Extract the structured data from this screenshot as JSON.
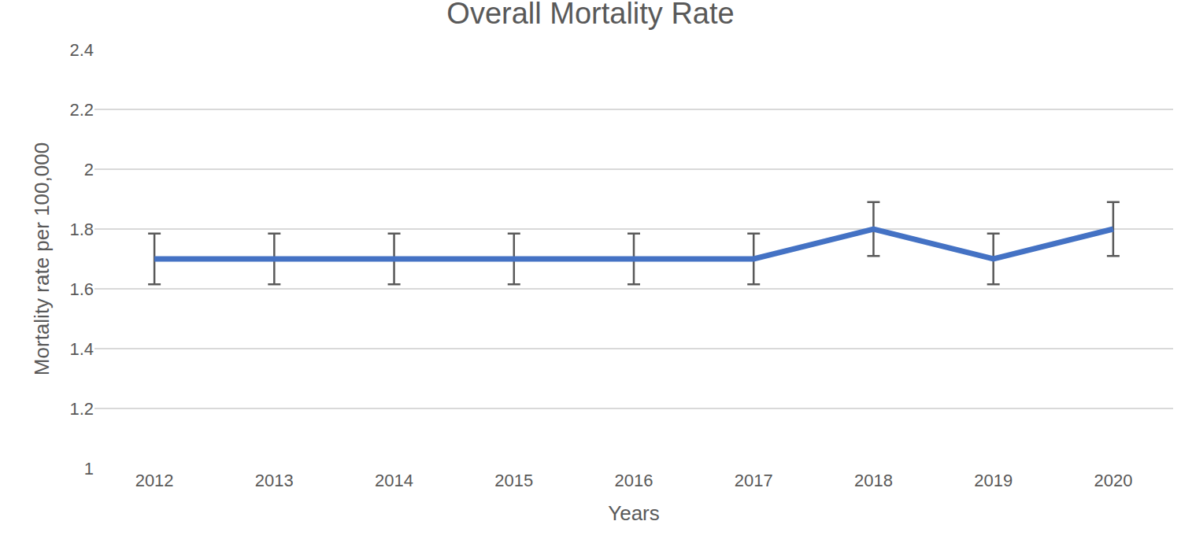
{
  "chart_data": {
    "type": "line",
    "title": "Overall Mortality Rate",
    "x_label": "Years",
    "y_label": "Mortality rate per 100,000",
    "categories": [
      "2012",
      "2013",
      "2014",
      "2015",
      "2016",
      "2017",
      "2018",
      "2019",
      "2020"
    ],
    "values": [
      1.7,
      1.7,
      1.7,
      1.7,
      1.7,
      1.7,
      1.8,
      1.7,
      1.8
    ],
    "errors": [
      0.085,
      0.085,
      0.085,
      0.085,
      0.085,
      0.085,
      0.09,
      0.085,
      0.09
    ],
    "color": "#4472c4",
    "ylim": [
      1,
      2.4
    ],
    "yticks": [
      1,
      1.2,
      1.4,
      1.6,
      1.8,
      2,
      2.2,
      2.4
    ],
    "grid": true
  }
}
